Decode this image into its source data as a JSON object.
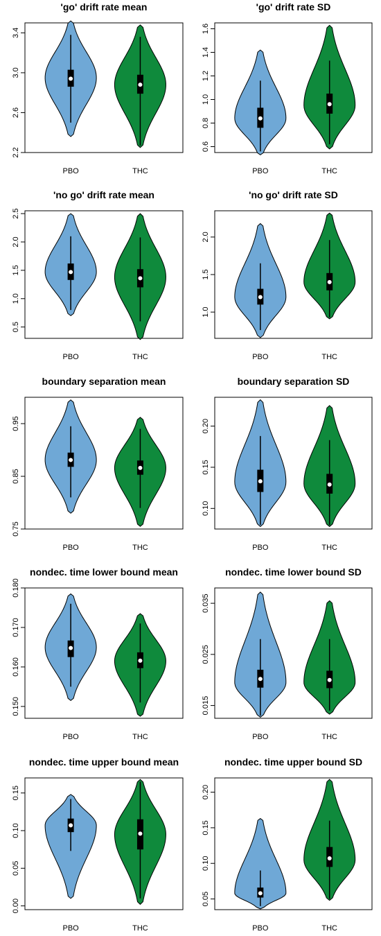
{
  "colors": {
    "PBO": "#6fa8d6",
    "THC": "#0f8a3c",
    "box": "#000000",
    "median": "#ffffff",
    "outline": "#000000"
  },
  "chart_data": [
    {
      "type": "violin",
      "title": "'go' drift rate mean",
      "categories": [
        "PBO",
        "THC"
      ],
      "ylim": [
        2.2,
        3.5
      ],
      "yticks": [
        2.2,
        2.6,
        3.0,
        3.4
      ],
      "ytick_labels": [
        "2.2",
        "2.6",
        "3.0",
        "3.4"
      ],
      "groups": [
        {
          "name": "PBO",
          "min": 2.36,
          "max": 3.52,
          "q1": 2.86,
          "median": 2.94,
          "q3": 3.03,
          "whisker_low": 2.5,
          "whisker_high": 3.38,
          "peak": 2.95
        },
        {
          "name": "THC",
          "min": 2.25,
          "max": 3.48,
          "q1": 2.79,
          "median": 2.88,
          "q3": 2.98,
          "whisker_low": 2.27,
          "whisker_high": 3.36,
          "peak": 2.88
        }
      ]
    },
    {
      "type": "violin",
      "title": "'go' drift rate SD",
      "categories": [
        "PBO",
        "THC"
      ],
      "ylim": [
        0.55,
        1.65
      ],
      "yticks": [
        0.6,
        0.8,
        1.0,
        1.2,
        1.4,
        1.6
      ],
      "ytick_labels": [
        "0.6",
        "0.8",
        "1.0",
        "1.2",
        "1.4",
        "1.6"
      ],
      "groups": [
        {
          "name": "PBO",
          "min": 0.53,
          "max": 1.42,
          "q1": 0.76,
          "median": 0.84,
          "q3": 0.93,
          "whisker_low": 0.56,
          "whisker_high": 1.16,
          "peak": 0.84
        },
        {
          "name": "THC",
          "min": 0.58,
          "max": 1.63,
          "q1": 0.88,
          "median": 0.96,
          "q3": 1.05,
          "whisker_low": 0.62,
          "whisker_high": 1.33,
          "peak": 0.95
        }
      ]
    },
    {
      "type": "violin",
      "title": "'no go' drift rate mean",
      "categories": [
        "PBO",
        "THC"
      ],
      "ylim": [
        0.3,
        2.55
      ],
      "yticks": [
        0.5,
        1.0,
        1.5,
        2.0,
        2.5
      ],
      "ytick_labels": [
        "0.5",
        "1.0",
        "1.5",
        "2.0",
        "2.5"
      ],
      "groups": [
        {
          "name": "PBO",
          "min": 0.7,
          "max": 2.5,
          "q1": 1.33,
          "median": 1.47,
          "q3": 1.62,
          "whisker_low": 0.8,
          "whisker_high": 2.1,
          "peak": 1.47
        },
        {
          "name": "THC",
          "min": 0.28,
          "max": 2.5,
          "q1": 1.2,
          "median": 1.36,
          "q3": 1.52,
          "whisker_low": 0.6,
          "whisker_high": 2.08,
          "peak": 1.38
        }
      ]
    },
    {
      "type": "violin",
      "title": "'no go' drift rate SD",
      "categories": [
        "PBO",
        "THC"
      ],
      "ylim": [
        0.65,
        2.35
      ],
      "yticks": [
        1.0,
        1.5,
        2.0
      ],
      "ytick_labels": [
        "1.0",
        "1.5",
        "2.0"
      ],
      "groups": [
        {
          "name": "PBO",
          "min": 0.66,
          "max": 2.18,
          "q1": 1.1,
          "median": 1.2,
          "q3": 1.31,
          "whisker_low": 0.76,
          "whisker_high": 1.65,
          "peak": 1.2
        },
        {
          "name": "THC",
          "min": 0.91,
          "max": 2.32,
          "q1": 1.29,
          "median": 1.4,
          "q3": 1.52,
          "whisker_low": 0.93,
          "whisker_high": 1.96,
          "peak": 1.4
        }
      ]
    },
    {
      "type": "violin",
      "title": "boundary separation mean",
      "categories": [
        "PBO",
        "THC"
      ],
      "ylim": [
        0.75,
        1.0
      ],
      "yticks": [
        0.75,
        0.85,
        0.95
      ],
      "ytick_labels": [
        "0.75",
        "0.85",
        "0.95"
      ],
      "groups": [
        {
          "name": "PBO",
          "min": 0.78,
          "max": 0.995,
          "q1": 0.868,
          "median": 0.881,
          "q3": 0.895,
          "whisker_low": 0.81,
          "whisker_high": 0.945,
          "peak": 0.881
        },
        {
          "name": "THC",
          "min": 0.755,
          "max": 0.962,
          "q1": 0.853,
          "median": 0.866,
          "q3": 0.88,
          "whisker_low": 0.79,
          "whisker_high": 0.94,
          "peak": 0.866
        }
      ]
    },
    {
      "type": "violin",
      "title": "boundary separation SD",
      "categories": [
        "PBO",
        "THC"
      ],
      "ylim": [
        0.075,
        0.235
      ],
      "yticks": [
        0.1,
        0.15,
        0.2
      ],
      "ytick_labels": [
        "0.10",
        "0.15",
        "0.20"
      ],
      "groups": [
        {
          "name": "PBO",
          "min": 0.078,
          "max": 0.232,
          "q1": 0.12,
          "median": 0.133,
          "q3": 0.147,
          "whisker_low": 0.08,
          "whisker_high": 0.188,
          "peak": 0.132
        },
        {
          "name": "THC",
          "min": 0.078,
          "max": 0.225,
          "q1": 0.118,
          "median": 0.129,
          "q3": 0.142,
          "whisker_low": 0.08,
          "whisker_high": 0.183,
          "peak": 0.13
        }
      ]
    },
    {
      "type": "violin",
      "title": "nondec. time  lower bound mean",
      "categories": [
        "PBO",
        "THC"
      ],
      "ylim": [
        0.147,
        0.18
      ],
      "yticks": [
        0.15,
        0.16,
        0.17,
        0.18
      ],
      "ytick_labels": [
        "0.150",
        "0.160",
        "0.170",
        "0.180"
      ],
      "groups": [
        {
          "name": "PBO",
          "min": 0.1515,
          "max": 0.1785,
          "q1": 0.1625,
          "median": 0.1648,
          "q3": 0.1667,
          "whisker_low": 0.155,
          "whisker_high": 0.176,
          "peak": 0.165
        },
        {
          "name": "THC",
          "min": 0.1475,
          "max": 0.1735,
          "q1": 0.1597,
          "median": 0.1616,
          "q3": 0.1637,
          "whisker_low": 0.151,
          "whisker_high": 0.171,
          "peak": 0.1615
        }
      ]
    },
    {
      "type": "violin",
      "title": "nondec. time  lower bound SD",
      "categories": [
        "PBO",
        "THC"
      ],
      "ylim": [
        0.0125,
        0.038
      ],
      "yticks": [
        0.015,
        0.025,
        0.035
      ],
      "ytick_labels": [
        "0.015",
        "0.025",
        "0.035"
      ],
      "groups": [
        {
          "name": "PBO",
          "min": 0.0127,
          "max": 0.0372,
          "q1": 0.0185,
          "median": 0.0202,
          "q3": 0.022,
          "whisker_low": 0.013,
          "whisker_high": 0.028,
          "peak": 0.0195
        },
        {
          "name": "THC",
          "min": 0.0133,
          "max": 0.0355,
          "q1": 0.0184,
          "median": 0.02,
          "q3": 0.0218,
          "whisker_low": 0.014,
          "whisker_high": 0.028,
          "peak": 0.0195
        }
      ]
    },
    {
      "type": "violin",
      "title": "nondec. time upper bound mean",
      "categories": [
        "PBO",
        "THC"
      ],
      "ylim": [
        -0.005,
        0.17
      ],
      "yticks": [
        0.0,
        0.05,
        0.1,
        0.15
      ],
      "ytick_labels": [
        "0.00",
        "0.05",
        "0.10",
        "0.15"
      ],
      "groups": [
        {
          "name": "PBO",
          "min": 0.01,
          "max": 0.148,
          "q1": 0.098,
          "median": 0.107,
          "q3": 0.116,
          "whisker_low": 0.073,
          "whisker_high": 0.142,
          "peak": 0.107
        },
        {
          "name": "THC",
          "min": 0.002,
          "max": 0.168,
          "q1": 0.075,
          "median": 0.096,
          "q3": 0.115,
          "whisker_low": 0.01,
          "whisker_high": 0.165,
          "peak": 0.095
        }
      ]
    },
    {
      "type": "violin",
      "title": "nondec. time upper bound SD",
      "categories": [
        "PBO",
        "THC"
      ],
      "ylim": [
        0.035,
        0.22
      ],
      "yticks": [
        0.05,
        0.1,
        0.15,
        0.2
      ],
      "ytick_labels": [
        "0.05",
        "0.10",
        "0.15",
        "0.20"
      ],
      "groups": [
        {
          "name": "PBO",
          "min": 0.036,
          "max": 0.163,
          "q1": 0.052,
          "median": 0.058,
          "q3": 0.066,
          "whisker_low": 0.04,
          "whisker_high": 0.09,
          "peak": 0.058
        },
        {
          "name": "THC",
          "min": 0.048,
          "max": 0.218,
          "q1": 0.095,
          "median": 0.107,
          "q3": 0.123,
          "whisker_low": 0.05,
          "whisker_high": 0.16,
          "peak": 0.105
        }
      ]
    }
  ]
}
